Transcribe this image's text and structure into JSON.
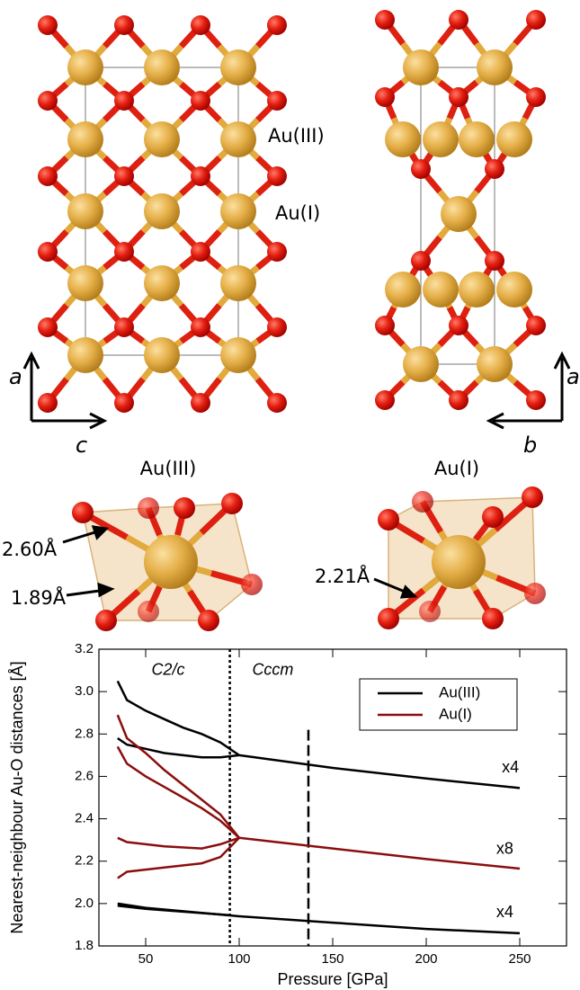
{
  "structures": {
    "labels": [
      "Au(III)",
      "Au(I)"
    ],
    "axes_left": [
      "a",
      "c"
    ],
    "axes_right": [
      "a",
      "b"
    ]
  },
  "polyhedra": [
    {
      "title": "Au(III)",
      "bonds": [
        "2.60Å",
        "1.89Å"
      ]
    },
    {
      "title": "Au(I)",
      "bonds": [
        "2.21Å"
      ]
    }
  ],
  "chart_data": {
    "type": "line",
    "xlabel": "Pressure [GPa]",
    "ylabel": "Nearest-neighbour Au-O distances [Å]",
    "xlim": [
      25,
      275
    ],
    "ylim": [
      1.8,
      3.2
    ],
    "xticks": [
      50,
      100,
      150,
      200,
      250
    ],
    "yticks": [
      1.8,
      {
        "value": 2,
        "label": "2.0"
      },
      2.2,
      2.4,
      2.6,
      2.8,
      {
        "value": 3,
        "label": "3.0"
      },
      3.2
    ],
    "legend": "upper right",
    "series": [
      {
        "name": "Au(III)",
        "color": "#000000",
        "lines": [
          {
            "x": [
              35,
              40,
              50,
              60,
              70,
              80,
              90,
              100
            ],
            "values": [
              3.05,
              2.96,
              2.91,
              2.87,
              2.83,
              2.8,
              2.76,
              2.7
            ]
          },
          {
            "x": [
              35,
              40,
              50,
              60,
              70,
              80,
              90,
              100
            ],
            "values": [
              2.78,
              2.75,
              2.73,
              2.71,
              2.7,
              2.69,
              2.69,
              2.7
            ]
          },
          {
            "x": [
              100,
              150,
              200,
              250
            ],
            "values": [
              2.7,
              2.64,
              2.59,
              2.545
            ]
          },
          {
            "x": [
              35,
              50,
              100,
              150,
              200,
              250
            ],
            "values": [
              2.0,
              1.98,
              1.94,
              1.91,
              1.88,
              1.86
            ]
          },
          {
            "x": [
              35,
              50,
              95
            ],
            "values": [
              1.99,
              1.975,
              1.945
            ]
          }
        ]
      },
      {
        "name": "Au(I)",
        "color": "#8b0e0e",
        "lines": [
          {
            "x": [
              35,
              40,
              50,
              60,
              70,
              80,
              90,
              100
            ],
            "values": [
              2.89,
              2.78,
              2.71,
              2.63,
              2.56,
              2.49,
              2.42,
              2.31
            ]
          },
          {
            "x": [
              35,
              40,
              50,
              60,
              70,
              80,
              90,
              100
            ],
            "values": [
              2.74,
              2.66,
              2.6,
              2.55,
              2.5,
              2.45,
              2.39,
              2.31
            ]
          },
          {
            "x": [
              35,
              40,
              60,
              80,
              90,
              100
            ],
            "values": [
              2.31,
              2.29,
              2.27,
              2.26,
              2.28,
              2.31
            ]
          },
          {
            "x": [
              35,
              40,
              60,
              80,
              90,
              100
            ],
            "values": [
              2.12,
              2.15,
              2.17,
              2.19,
              2.22,
              2.31
            ]
          },
          {
            "x": [
              100,
              150,
              200,
              250
            ],
            "values": [
              2.31,
              2.26,
              2.21,
              2.165
            ]
          }
        ]
      }
    ],
    "vlines": [
      {
        "x": 95,
        "style": "dotted"
      },
      {
        "x": 137,
        "style": "dashed",
        "ymax": 2.82
      }
    ],
    "annotations": [
      "C2/c",
      "Cccm",
      "x4",
      "x8",
      "x4"
    ]
  }
}
